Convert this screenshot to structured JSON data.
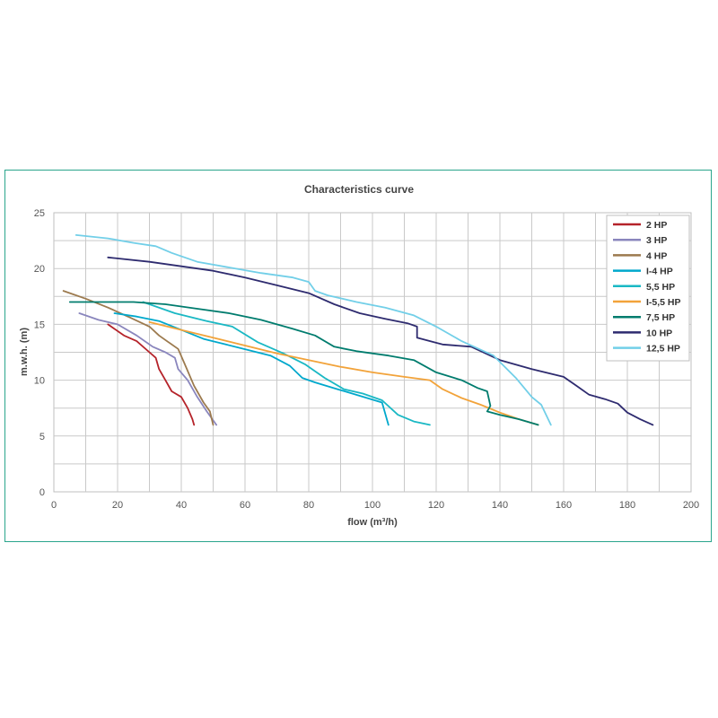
{
  "chart_data": {
    "type": "line",
    "title": "Characteristics curve",
    "xlabel": "flow (m³/h)",
    "ylabel": "m.w.h. (m)",
    "xlim": [
      0,
      200
    ],
    "ylim": [
      0,
      25
    ],
    "xticks": [
      0,
      20,
      40,
      60,
      80,
      100,
      120,
      140,
      160,
      180,
      200
    ],
    "yticks": [
      0,
      5,
      10,
      15,
      20,
      25
    ],
    "grid": true,
    "legend_position": "top-right",
    "series": [
      {
        "name": "2 HP",
        "color": "#b5232a",
        "x": [
          17,
          22,
          26,
          30,
          32,
          33,
          35,
          37,
          40,
          42,
          43.5,
          44
        ],
        "y": [
          15,
          14,
          13.5,
          12.5,
          12,
          11,
          10,
          9,
          8.5,
          7.5,
          6.5,
          6
        ]
      },
      {
        "name": "3 HP",
        "color": "#8a86bd",
        "x": [
          8,
          14,
          20,
          26,
          31,
          35,
          38,
          39,
          42,
          45,
          48,
          51
        ],
        "y": [
          16,
          15.4,
          15,
          14,
          13,
          12.5,
          12,
          11,
          10,
          8.5,
          7.2,
          6
        ]
      },
      {
        "name": "4 HP",
        "color": "#9c7a4e",
        "x": [
          3,
          10,
          17,
          24,
          30,
          33,
          36,
          39,
          41,
          44,
          47,
          49,
          50
        ],
        "y": [
          18,
          17.3,
          16.5,
          15.6,
          14.8,
          14,
          13.4,
          12.8,
          11.5,
          9.5,
          8,
          7.2,
          6
        ]
      },
      {
        "name": "I-4 HP",
        "color": "#00a8cc",
        "x": [
          19,
          26,
          33,
          40,
          47,
          54,
          61,
          68,
          74,
          78,
          82,
          89,
          96,
          103,
          105
        ],
        "y": [
          16,
          15.7,
          15.3,
          14.5,
          13.7,
          13.2,
          12.7,
          12.2,
          11.3,
          10.2,
          9.8,
          9.2,
          8.6,
          8,
          6
        ]
      },
      {
        "name": "5,5 HP",
        "color": "#1ab8c4",
        "x": [
          28,
          38,
          48,
          56,
          64,
          72,
          79,
          85,
          91,
          97,
          103,
          108,
          113,
          118
        ],
        "y": [
          17,
          16,
          15.3,
          14.8,
          13.4,
          12.4,
          11.4,
          10.2,
          9.2,
          8.8,
          8.2,
          6.9,
          6.3,
          6
        ]
      },
      {
        "name": "I-5,5 HP",
        "color": "#f2a33a",
        "x": [
          30,
          40,
          50,
          60,
          70,
          80,
          90,
          100,
          110,
          118,
          122,
          128,
          134,
          140,
          146,
          152
        ],
        "y": [
          15.2,
          14.5,
          13.8,
          13.1,
          12.4,
          11.8,
          11.2,
          10.7,
          10.3,
          10,
          9.2,
          8.4,
          7.8,
          7.1,
          6.5,
          6
        ]
      },
      {
        "name": "7,5 HP",
        "color": "#007c6e",
        "x": [
          5,
          15,
          25,
          35,
          45,
          55,
          65,
          75,
          82,
          88,
          95,
          105,
          113,
          120,
          128,
          133,
          136,
          137,
          136,
          140,
          146,
          152
        ],
        "y": [
          17,
          17,
          17,
          16.8,
          16.4,
          16,
          15.4,
          14.6,
          14,
          13,
          12.6,
          12.2,
          11.8,
          10.7,
          10,
          9.3,
          9,
          7.7,
          7.2,
          6.9,
          6.5,
          6
        ]
      },
      {
        "name": "10 HP",
        "color": "#2e2b6f",
        "x": [
          17,
          30,
          40,
          50,
          60,
          70,
          80,
          88,
          96,
          104,
          111,
          114,
          114,
          122,
          131,
          140,
          150,
          160,
          164,
          168,
          173,
          177,
          180,
          184,
          188
        ],
        "y": [
          21,
          20.6,
          20.2,
          19.8,
          19.2,
          18.5,
          17.8,
          16.8,
          16,
          15.5,
          15.1,
          14.8,
          13.8,
          13.2,
          13,
          11.8,
          11,
          10.3,
          9.5,
          8.7,
          8.3,
          7.9,
          7.1,
          6.5,
          6
        ]
      },
      {
        "name": "12,5 HP",
        "color": "#72cfe8",
        "x": [
          7,
          17,
          25,
          32,
          37,
          45,
          55,
          65,
          75,
          80,
          82,
          86,
          95,
          104,
          113,
          120,
          128,
          138,
          145,
          150,
          153,
          156
        ],
        "y": [
          23,
          22.7,
          22.3,
          22,
          21.4,
          20.6,
          20.1,
          19.6,
          19.2,
          18.8,
          18,
          17.6,
          17,
          16.5,
          15.8,
          14.8,
          13.5,
          12.2,
          10.2,
          8.5,
          7.8,
          6
        ]
      }
    ]
  }
}
